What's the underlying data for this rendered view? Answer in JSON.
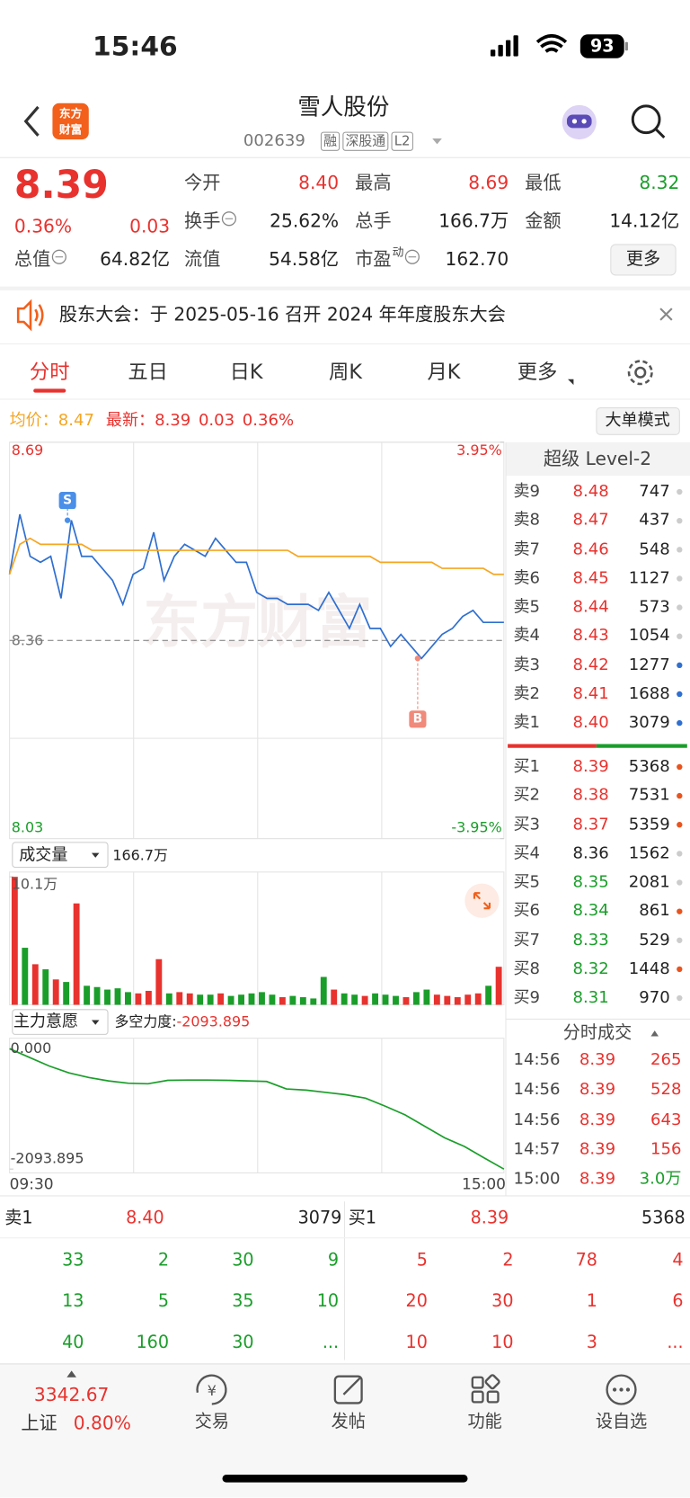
{
  "status_bar": {
    "time": "15:46",
    "battery": "93"
  },
  "header": {
    "logo": [
      "东方",
      "财富"
    ],
    "title": "雪人股份",
    "code": "002639",
    "tags": [
      "融",
      "深股通",
      "L2"
    ]
  },
  "quote": {
    "price": "8.39",
    "change_percent": "0.36%",
    "change": "0.03",
    "color": "#e8322e",
    "stats": [
      {
        "label": "今开",
        "value": "8.40",
        "color": "#e8322e"
      },
      {
        "label": "最高",
        "value": "8.69",
        "color": "#e8322e"
      },
      {
        "label": "最低",
        "value": "8.32",
        "color": "#1a9e2a"
      },
      {
        "label": "换手",
        "value": "25.62%",
        "color": "#222222"
      },
      {
        "label": "总手",
        "value": "166.7万",
        "color": "#222222"
      },
      {
        "label": "金额",
        "value": "14.12亿",
        "color": "#222222"
      },
      {
        "label": "总值",
        "value": "64.82亿",
        "color": "#222222"
      },
      {
        "label": "流值",
        "value": "54.58亿",
        "color": "#222222"
      },
      {
        "label": "市盈",
        "sup": "动",
        "value": "162.70",
        "color": "#222222"
      }
    ],
    "more": "更多"
  },
  "notice": {
    "text": "股东大会：于 2025-05-16 召开 2024 年年度股东大会"
  },
  "tabs": {
    "items": [
      "分时",
      "五日",
      "日K",
      "周K",
      "月K",
      "更多"
    ],
    "active": 0
  },
  "info_bar": {
    "avg_label": "均价：",
    "avg": "8.47",
    "latest_label": "最新：",
    "latest": "8.39",
    "change": "0.03",
    "change_percent": "0.36%",
    "button": "大单模式"
  },
  "price_chart": {
    "type": "line",
    "ylim": [
      8.03,
      8.69
    ],
    "yticks": [
      8.69,
      8.36,
      8.03
    ],
    "y2lim": [
      -3.95,
      3.95
    ],
    "y2ticks": [
      {
        "value": 3.95,
        "label": "3.95%"
      },
      {
        "value": -3.95,
        "label": "-3.95%"
      }
    ],
    "series": [
      {
        "color": "#2f6fd0",
        "values": [
          8.47,
          8.57,
          8.5,
          8.49,
          8.5,
          8.43,
          8.56,
          8.5,
          8.5,
          8.48,
          8.46,
          8.42,
          8.47,
          8.48,
          8.54,
          8.46,
          8.5,
          8.52,
          8.51,
          8.5,
          8.53,
          8.51,
          8.49,
          8.49,
          8.44,
          8.43,
          8.43,
          8.42,
          8.42,
          8.42,
          8.41,
          8.44,
          8.41,
          8.38,
          8.42,
          8.38,
          8.38,
          8.35,
          8.37,
          8.35,
          8.33,
          8.35,
          8.37,
          8.38,
          8.4,
          8.41,
          8.39,
          8.39,
          8.39
        ]
      },
      {
        "color": "#f5a623",
        "values": [
          8.47,
          8.52,
          8.53,
          8.52,
          8.52,
          8.52,
          8.52,
          8.52,
          8.51,
          8.51,
          8.51,
          8.51,
          8.51,
          8.51,
          8.51,
          8.51,
          8.51,
          8.51,
          8.51,
          8.51,
          8.51,
          8.51,
          8.51,
          8.51,
          8.51,
          8.51,
          8.51,
          8.51,
          8.5,
          8.5,
          8.5,
          8.5,
          8.5,
          8.5,
          8.5,
          8.5,
          8.49,
          8.49,
          8.49,
          8.49,
          8.49,
          8.49,
          8.48,
          8.48,
          8.48,
          8.48,
          8.48,
          8.47,
          8.47
        ]
      }
    ],
    "markers": [
      "S",
      "B"
    ]
  },
  "volume_chart": {
    "type": "bar",
    "label": "成交量",
    "total": "166.7万",
    "ylim": [
      0,
      10.1
    ],
    "yticks": [
      {
        "value": 10.1,
        "label": "10.1万"
      }
    ],
    "values": [
      10.1,
      4.5,
      3.2,
      2.8,
      2.0,
      1.8,
      8.0,
      1.5,
      1.4,
      1.2,
      1.3,
      1.0,
      0.9,
      1.1,
      3.6,
      0.9,
      1.0,
      0.9,
      0.8,
      0.8,
      0.9,
      0.7,
      0.8,
      0.9,
      1.0,
      0.8,
      0.6,
      0.7,
      0.6,
      0.5,
      2.2,
      1.2,
      0.9,
      0.8,
      0.7,
      0.9,
      0.8,
      0.7,
      0.6,
      1.0,
      1.2,
      0.8,
      0.7,
      0.6,
      0.8,
      0.9,
      1.5,
      3.0
    ],
    "colors": [
      "#e8322e",
      "#1a9e2a",
      "#e8322e",
      "#1a9e2a",
      "#e8322e",
      "#1a9e2a",
      "#e8322e",
      "#1a9e2a",
      "#1a9e2a",
      "#1a9e2a",
      "#1a9e2a",
      "#1a9e2a",
      "#e8322e",
      "#e8322e",
      "#e8322e",
      "#1a9e2a",
      "#e8322e",
      "#e8322e",
      "#1a9e2a",
      "#1a9e2a",
      "#e8322e",
      "#1a9e2a",
      "#1a9e2a",
      "#1a9e2a",
      "#1a9e2a",
      "#1a9e2a",
      "#e8322e",
      "#1a9e2a",
      "#1a9e2a",
      "#1a9e2a",
      "#1a9e2a",
      "#e8322e",
      "#1a9e2a",
      "#1a9e2a",
      "#e8322e",
      "#1a9e2a",
      "#1a9e2a",
      "#1a9e2a",
      "#e8322e",
      "#1a9e2a",
      "#1a9e2a",
      "#e8322e",
      "#e8322e",
      "#e8322e",
      "#e8322e",
      "#e8322e",
      "#1a9e2a",
      "#e8322e"
    ]
  },
  "force_chart": {
    "type": "line",
    "label": "主力意愿",
    "metric_label": "多空力度:",
    "metric_value": "-2093.895",
    "ylim": [
      -2093.895,
      0
    ],
    "yticks": [
      {
        "value": 0,
        "label": "0.000"
      },
      {
        "value": -2093.895,
        "label": "-2093.895"
      }
    ],
    "x_labels": [
      "09:30",
      "15:00"
    ],
    "color": "#1a9e2a",
    "values": [
      0,
      -150,
      -300,
      -420,
      -500,
      -560,
      -600,
      -610,
      -550,
      -545,
      -545,
      -550,
      -560,
      -570,
      -700,
      -720,
      -760,
      -800,
      -860,
      -1000,
      -1150,
      -1350,
      -1550,
      -1700,
      -1900,
      -2093.895
    ]
  },
  "order_book": {
    "title": "超级 Level-2",
    "asks": [
      {
        "label": "卖9",
        "price": "8.48",
        "volume": "747",
        "color": "#e8322e",
        "dot": "#cccccc"
      },
      {
        "label": "卖8",
        "price": "8.47",
        "volume": "437",
        "color": "#e8322e",
        "dot": "#cccccc"
      },
      {
        "label": "卖7",
        "price": "8.46",
        "volume": "548",
        "color": "#e8322e",
        "dot": "#cccccc"
      },
      {
        "label": "卖6",
        "price": "8.45",
        "volume": "1127",
        "color": "#e8322e",
        "dot": "#cccccc"
      },
      {
        "label": "卖5",
        "price": "8.44",
        "volume": "573",
        "color": "#e8322e",
        "dot": "#cccccc"
      },
      {
        "label": "卖4",
        "price": "8.43",
        "volume": "1054",
        "color": "#e8322e",
        "dot": "#cccccc"
      },
      {
        "label": "卖3",
        "price": "8.42",
        "volume": "1277",
        "color": "#e8322e",
        "dot": "#2f6fd0"
      },
      {
        "label": "卖2",
        "price": "8.41",
        "volume": "1688",
        "color": "#e8322e",
        "dot": "#2f6fd0"
      },
      {
        "label": "卖1",
        "price": "8.40",
        "volume": "3079",
        "color": "#e8322e",
        "dot": "#2f6fd0"
      }
    ],
    "bids": [
      {
        "label": "买1",
        "price": "8.39",
        "volume": "5368",
        "color": "#e8322e",
        "dot": "#e8541e"
      },
      {
        "label": "买2",
        "price": "8.38",
        "volume": "7531",
        "color": "#e8322e",
        "dot": "#e8541e"
      },
      {
        "label": "买3",
        "price": "8.37",
        "volume": "5359",
        "color": "#e8322e",
        "dot": "#e8541e"
      },
      {
        "label": "买4",
        "price": "8.36",
        "volume": "1562",
        "color": "#222222",
        "dot": "#cccccc"
      },
      {
        "label": "买5",
        "price": "8.35",
        "volume": "2081",
        "color": "#1a9e2a",
        "dot": "#cccccc"
      },
      {
        "label": "买6",
        "price": "8.34",
        "volume": "861",
        "color": "#1a9e2a",
        "dot": "#e8541e"
      },
      {
        "label": "买7",
        "price": "8.33",
        "volume": "529",
        "color": "#1a9e2a",
        "dot": "#cccccc"
      },
      {
        "label": "买8",
        "price": "8.32",
        "volume": "1448",
        "color": "#1a9e2a",
        "dot": "#e8541e"
      },
      {
        "label": "买9",
        "price": "8.31",
        "volume": "970",
        "color": "#1a9e2a",
        "dot": "#cccccc"
      }
    ]
  },
  "trades": {
    "title": "分时成交",
    "rows": [
      {
        "time": "14:56",
        "price": "8.39",
        "volume": "265",
        "color": "#e8322e"
      },
      {
        "time": "14:56",
        "price": "8.39",
        "volume": "528",
        "color": "#e8322e"
      },
      {
        "time": "14:56",
        "price": "8.39",
        "volume": "643",
        "color": "#e8322e"
      },
      {
        "time": "14:57",
        "price": "8.39",
        "volume": "156",
        "color": "#e8322e"
      },
      {
        "time": "15:00",
        "price": "8.39",
        "volume": "3.0万",
        "color": "#1a9e2a"
      }
    ]
  },
  "queue": {
    "ask_label": "卖1",
    "ask_price": "8.40",
    "ask_volume": "3079",
    "bid_label": "买1",
    "bid_price": "8.39",
    "bid_volume": "5368",
    "ask_queue": [
      "33",
      "2",
      "30",
      "9",
      "13",
      "5",
      "35",
      "10",
      "40",
      "160",
      "30",
      "..."
    ],
    "bid_queue": [
      "5",
      "2",
      "78",
      "4",
      "20",
      "30",
      "1",
      "6",
      "10",
      "10",
      "3",
      "..."
    ]
  },
  "bottom_bar": {
    "index_value": "3342.67",
    "index_name": "上证",
    "index_change": "0.80%",
    "items": [
      "交易",
      "发帖",
      "功能",
      "设自选"
    ]
  }
}
